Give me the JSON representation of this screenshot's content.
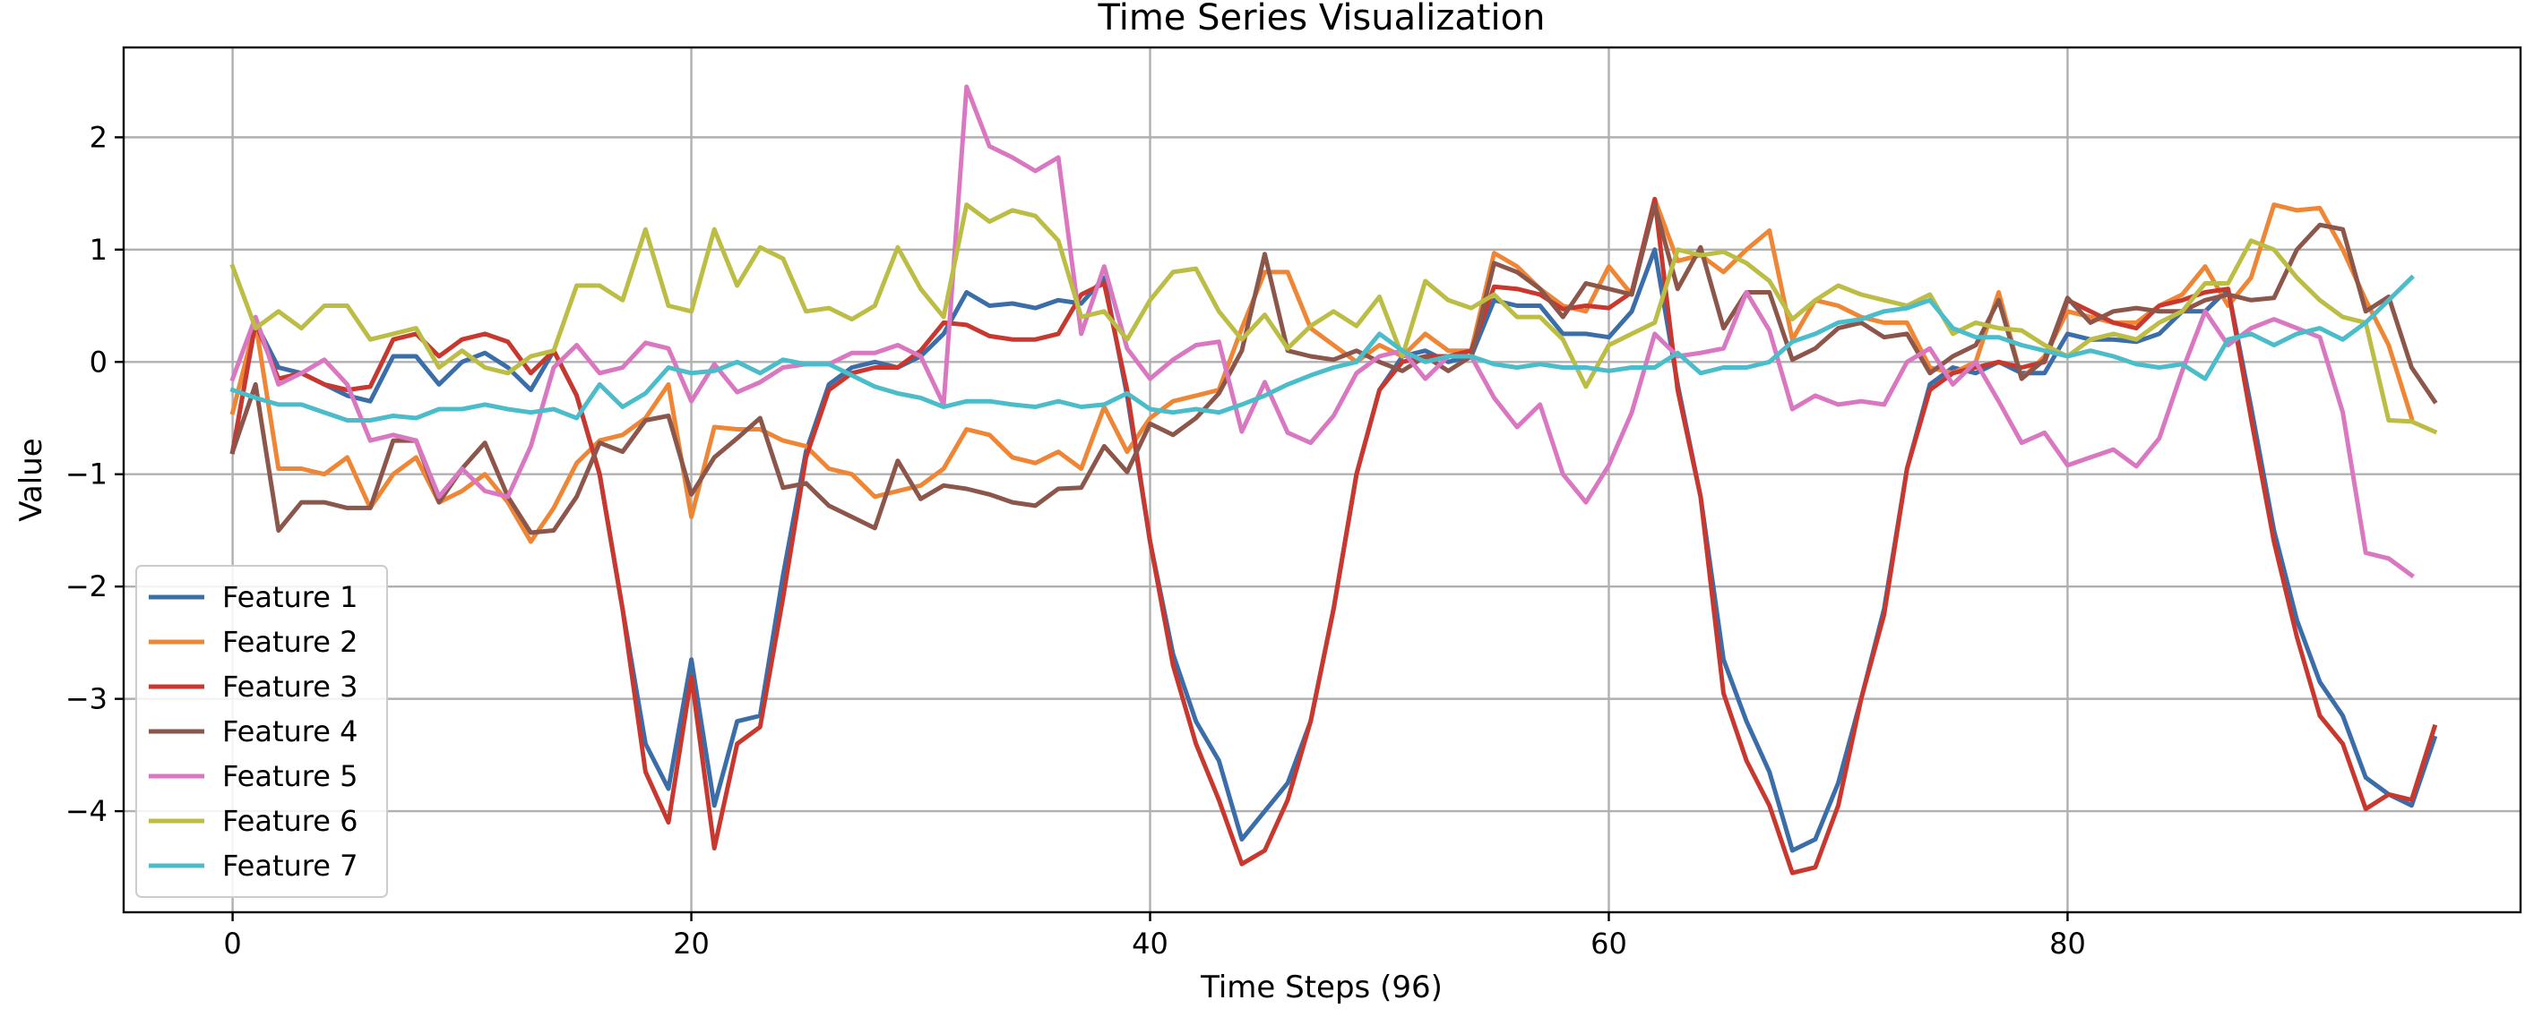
{
  "chart_data": {
    "type": "line",
    "title": "Time Series Visualization",
    "xlabel": "Time Steps (96)",
    "ylabel": "Value",
    "xlim": [
      -4.75,
      99.75
    ],
    "ylim": [
      -4.9,
      2.8
    ],
    "xticks": [
      0,
      20,
      40,
      60,
      80
    ],
    "yticks": [
      2,
      1,
      0,
      -1,
      -2,
      -3,
      -4
    ],
    "ytick_labels": [
      "2",
      "1",
      "0",
      "−1",
      "−2",
      "−3",
      "−4"
    ],
    "grid": true,
    "legend_position": "lower-left",
    "series": [
      {
        "name": "Feature 1",
        "color": "#3b6ea8",
        "values": [
          -0.8,
          0.35,
          -0.05,
          -0.1,
          -0.2,
          -0.3,
          -0.35,
          0.05,
          0.05,
          -0.2,
          0.0,
          0.08,
          -0.05,
          -0.25,
          0.1,
          -0.3,
          -1.0,
          -2.2,
          -3.4,
          -3.8,
          -2.65,
          -3.95,
          -3.2,
          -3.15,
          -1.9,
          -0.8,
          -0.2,
          -0.05,
          0.0,
          -0.05,
          0.05,
          0.25,
          0.62,
          0.5,
          0.52,
          0.48,
          0.55,
          0.52,
          0.75,
          -0.3,
          -1.6,
          -2.6,
          -3.2,
          -3.55,
          -4.25,
          -4.0,
          -3.75,
          -3.2,
          -2.2,
          -1.0,
          -0.25,
          0.05,
          0.1,
          0.0,
          0.05,
          0.55,
          0.5,
          0.5,
          0.25,
          0.25,
          0.22,
          0.45,
          1.0,
          -0.2,
          -1.2,
          -2.65,
          -3.2,
          -3.65,
          -4.35,
          -4.25,
          -3.75,
          -3.0,
          -2.2,
          -0.95,
          -0.2,
          -0.05,
          -0.1,
          0.0,
          -0.1,
          -0.1,
          0.25,
          0.2,
          0.2,
          0.18,
          0.25,
          0.45,
          0.45,
          0.65,
          -0.4,
          -1.5,
          -2.3,
          -2.85,
          -3.15,
          -3.7,
          -3.85,
          -3.95,
          -3.35
        ]
      },
      {
        "name": "Feature 2",
        "color": "#ef8636",
        "values": [
          -0.45,
          0.35,
          -0.95,
          -0.95,
          -1.0,
          -0.85,
          -1.3,
          -1.0,
          -0.85,
          -1.25,
          -1.15,
          -1.0,
          -1.25,
          -1.6,
          -1.3,
          -0.9,
          -0.7,
          -0.65,
          -0.5,
          -0.2,
          -1.38,
          -0.58,
          -0.6,
          -0.6,
          -0.7,
          -0.75,
          -0.95,
          -1.0,
          -1.2,
          -1.15,
          -1.1,
          -0.95,
          -0.6,
          -0.65,
          -0.85,
          -0.9,
          -0.8,
          -0.95,
          -0.4,
          -0.8,
          -0.5,
          -0.35,
          -0.3,
          -0.25,
          0.3,
          0.8,
          0.8,
          0.3,
          0.15,
          0.0,
          0.15,
          0.05,
          0.25,
          0.1,
          0.1,
          0.97,
          0.85,
          0.65,
          0.5,
          0.45,
          0.85,
          0.6,
          1.45,
          0.9,
          0.95,
          0.8,
          1.0,
          1.17,
          0.2,
          0.55,
          0.5,
          0.4,
          0.35,
          0.35,
          -0.05,
          -0.1,
          0.0,
          0.62,
          -0.15,
          0.05,
          0.45,
          0.4,
          0.35,
          0.35,
          0.5,
          0.6,
          0.85,
          0.5,
          0.75,
          1.4,
          1.35,
          1.37,
          1.0,
          0.55,
          0.15,
          -0.5
        ]
      },
      {
        "name": "Feature 3",
        "color": "#c8382f",
        "values": [
          -0.8,
          0.35,
          -0.15,
          -0.1,
          -0.2,
          -0.25,
          -0.22,
          0.2,
          0.25,
          0.05,
          0.2,
          0.25,
          0.18,
          -0.1,
          0.1,
          -0.3,
          -1.0,
          -2.2,
          -3.65,
          -4.1,
          -2.8,
          -4.33,
          -3.4,
          -3.25,
          -2.1,
          -0.85,
          -0.25,
          -0.1,
          -0.05,
          -0.05,
          0.1,
          0.35,
          0.33,
          0.23,
          0.2,
          0.2,
          0.25,
          0.6,
          0.7,
          -0.25,
          -1.6,
          -2.7,
          -3.4,
          -3.9,
          -4.47,
          -4.35,
          -3.9,
          -3.2,
          -2.2,
          -1.0,
          -0.25,
          0.0,
          0.05,
          0.05,
          0.1,
          0.67,
          0.65,
          0.6,
          0.47,
          0.5,
          0.48,
          0.62,
          1.45,
          -0.25,
          -1.2,
          -2.95,
          -3.55,
          -3.95,
          -4.55,
          -4.5,
          -3.95,
          -3.0,
          -2.25,
          -0.95,
          -0.25,
          -0.1,
          -0.05,
          0.0,
          -0.05,
          0.0,
          0.55,
          0.45,
          0.35,
          0.3,
          0.5,
          0.55,
          0.62,
          0.65,
          -0.5,
          -1.6,
          -2.45,
          -3.15,
          -3.4,
          -3.98,
          -3.85,
          -3.9,
          -3.25
        ]
      },
      {
        "name": "Feature 4",
        "color": "#8c564b",
        "values": [
          -0.8,
          -0.2,
          -1.5,
          -1.25,
          -1.25,
          -1.3,
          -1.3,
          -0.7,
          -0.7,
          -1.25,
          -0.95,
          -0.72,
          -1.2,
          -1.52,
          -1.5,
          -1.2,
          -0.72,
          -0.8,
          -0.52,
          -0.48,
          -1.18,
          -0.85,
          -0.68,
          -0.5,
          -1.12,
          -1.08,
          -1.28,
          -1.38,
          -1.48,
          -0.88,
          -1.22,
          -1.1,
          -1.13,
          -1.18,
          -1.25,
          -1.28,
          -1.13,
          -1.12,
          -0.75,
          -0.98,
          -0.55,
          -0.65,
          -0.5,
          -0.28,
          0.1,
          0.96,
          0.1,
          0.05,
          0.02,
          0.1,
          0.0,
          -0.08,
          0.05,
          -0.08,
          0.05,
          0.88,
          0.8,
          0.65,
          0.4,
          0.7,
          0.65,
          0.6,
          1.4,
          0.65,
          1.02,
          0.3,
          0.62,
          0.62,
          0.02,
          0.12,
          0.3,
          0.35,
          0.22,
          0.25,
          -0.1,
          0.05,
          0.15,
          0.55,
          -0.15,
          0.02,
          0.57,
          0.35,
          0.45,
          0.48,
          0.45,
          0.45,
          0.55,
          0.6,
          0.55,
          0.57,
          1.0,
          1.22,
          1.18,
          0.45,
          0.58,
          -0.05,
          -0.35
        ]
      },
      {
        "name": "Feature 5",
        "color": "#da77c1",
        "values": [
          -0.15,
          0.4,
          -0.2,
          -0.1,
          0.02,
          -0.2,
          -0.7,
          -0.65,
          -0.7,
          -1.2,
          -0.95,
          -1.15,
          -1.2,
          -0.75,
          -0.05,
          0.15,
          -0.1,
          -0.05,
          0.17,
          0.12,
          -0.35,
          -0.02,
          -0.27,
          -0.18,
          -0.05,
          -0.02,
          -0.02,
          0.08,
          0.08,
          0.15,
          0.05,
          -0.38,
          2.45,
          1.92,
          1.82,
          1.7,
          1.82,
          0.25,
          0.85,
          0.12,
          -0.15,
          0.02,
          0.15,
          0.18,
          -0.62,
          -0.18,
          -0.63,
          -0.72,
          -0.48,
          -0.1,
          0.05,
          0.1,
          -0.15,
          0.05,
          0.05,
          -0.32,
          -0.58,
          -0.38,
          -1.0,
          -1.25,
          -0.92,
          -0.45,
          0.25,
          0.05,
          0.08,
          0.12,
          0.62,
          0.28,
          -0.42,
          -0.3,
          -0.38,
          -0.35,
          -0.38,
          0.0,
          0.12,
          -0.2,
          0.0,
          -0.35,
          -0.72,
          -0.63,
          -0.92,
          -0.85,
          -0.78,
          -0.93,
          -0.68,
          -0.08,
          0.45,
          0.15,
          0.3,
          0.38,
          0.3,
          0.22,
          -0.45,
          -1.7,
          -1.75,
          -1.9
        ]
      },
      {
        "name": "Feature 6",
        "color": "#bcbd45",
        "values": [
          0.85,
          0.3,
          0.45,
          0.3,
          0.5,
          0.5,
          0.2,
          0.25,
          0.3,
          -0.05,
          0.1,
          -0.05,
          -0.1,
          0.05,
          0.1,
          0.68,
          0.68,
          0.55,
          1.18,
          0.5,
          0.45,
          1.18,
          0.68,
          1.02,
          0.92,
          0.45,
          0.48,
          0.38,
          0.5,
          1.02,
          0.65,
          0.4,
          1.4,
          1.25,
          1.35,
          1.3,
          1.08,
          0.4,
          0.45,
          0.2,
          0.55,
          0.8,
          0.83,
          0.45,
          0.2,
          0.42,
          0.12,
          0.32,
          0.45,
          0.32,
          0.58,
          0.05,
          0.72,
          0.55,
          0.48,
          0.6,
          0.4,
          0.4,
          0.2,
          -0.22,
          0.15,
          0.25,
          0.35,
          1.0,
          0.95,
          0.98,
          0.88,
          0.72,
          0.38,
          0.55,
          0.68,
          0.6,
          0.55,
          0.5,
          0.6,
          0.25,
          0.35,
          0.3,
          0.28,
          0.15,
          0.05,
          0.2,
          0.25,
          0.2,
          0.35,
          0.45,
          0.7,
          0.7,
          1.08,
          1.0,
          0.75,
          0.55,
          0.4,
          0.35,
          -0.52,
          -0.53,
          -0.62
        ]
      },
      {
        "name": "Feature 7",
        "color": "#4bbcc9",
        "values": [
          -0.25,
          -0.32,
          -0.38,
          -0.38,
          -0.45,
          -0.52,
          -0.52,
          -0.48,
          -0.5,
          -0.42,
          -0.42,
          -0.38,
          -0.42,
          -0.45,
          -0.42,
          -0.5,
          -0.2,
          -0.4,
          -0.28,
          -0.05,
          -0.1,
          -0.08,
          0.0,
          -0.1,
          0.02,
          -0.02,
          -0.02,
          -0.12,
          -0.22,
          -0.28,
          -0.32,
          -0.4,
          -0.35,
          -0.35,
          -0.38,
          -0.4,
          -0.35,
          -0.4,
          -0.38,
          -0.28,
          -0.42,
          -0.45,
          -0.42,
          -0.45,
          -0.38,
          -0.3,
          -0.2,
          -0.12,
          -0.05,
          0.0,
          0.25,
          0.1,
          0.0,
          0.05,
          0.05,
          -0.02,
          -0.05,
          -0.02,
          -0.05,
          -0.05,
          -0.08,
          -0.05,
          -0.05,
          0.08,
          -0.1,
          -0.05,
          -0.05,
          0.0,
          0.18,
          0.25,
          0.35,
          0.38,
          0.45,
          0.48,
          0.55,
          0.3,
          0.22,
          0.22,
          0.15,
          0.1,
          0.05,
          0.1,
          0.05,
          -0.02,
          -0.05,
          -0.02,
          -0.15,
          0.2,
          0.25,
          0.15,
          0.25,
          0.3,
          0.2,
          0.35,
          0.55,
          0.75
        ]
      }
    ]
  }
}
